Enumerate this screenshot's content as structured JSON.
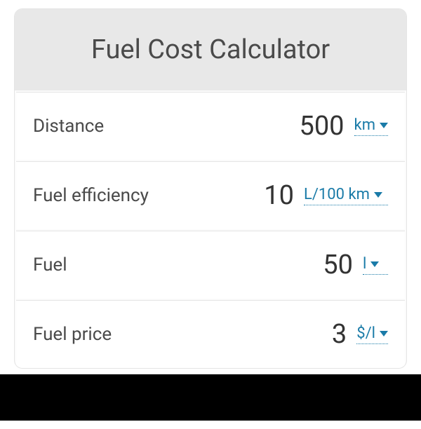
{
  "title": "Fuel Cost Calculator",
  "rows": [
    {
      "label": "Distance",
      "value": "500",
      "unit": "km"
    },
    {
      "label": "Fuel efficiency",
      "value": "10",
      "unit": "L/100 km"
    },
    {
      "label": "Fuel",
      "value": "50",
      "unit": "l"
    },
    {
      "label": "Fuel price",
      "value": "3",
      "unit": "$/l"
    }
  ],
  "colors": {
    "header_bg": "#e8e8e8",
    "card_bg": "#fbfbfb",
    "row_bg": "#ffffff",
    "border": "#e4e4e4",
    "label_text": "#4a4a4a",
    "value_text": "#333333",
    "link": "#1a7ba8",
    "bottom_bar": "#000000"
  },
  "typography": {
    "title_fontsize": 38,
    "label_fontsize": 26,
    "value_fontsize": 38,
    "unit_fontsize": 22
  }
}
